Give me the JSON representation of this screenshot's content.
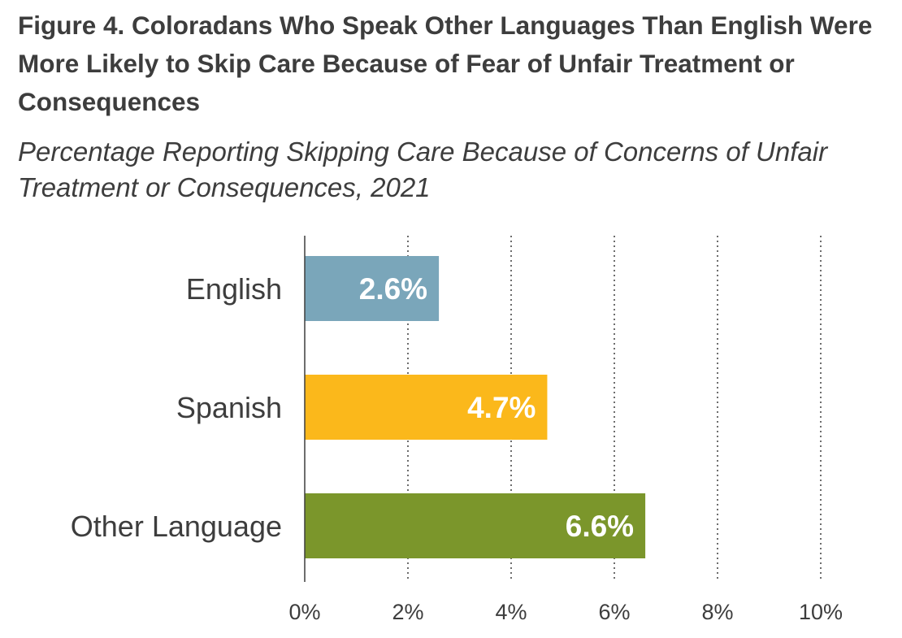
{
  "title": "Figure 4. Coloradans Who Speak Other Languages Than English Were More Likely to Skip Care Because of Fear of Unfair Treatment or Consequences",
  "subtitle": "Percentage Reporting Skipping Care Because of Concerns of Unfair Treatment or Consequences, 2021",
  "chart_data": {
    "type": "bar",
    "orientation": "horizontal",
    "categories": [
      "English",
      "Spanish",
      "Other Language"
    ],
    "values": [
      2.6,
      4.7,
      6.6
    ],
    "data_labels": [
      "2.6%",
      "4.7%",
      "6.6%"
    ],
    "colors": [
      "#7aa6ba",
      "#fbb81b",
      "#7b962b"
    ],
    "xlim": [
      0,
      10
    ],
    "x_ticks": [
      0,
      2,
      4,
      6,
      8,
      10
    ],
    "x_tick_labels": [
      "0%",
      "2%",
      "4%",
      "6%",
      "8%",
      "10%"
    ],
    "grid": "vertical dotted",
    "legend": "none"
  }
}
